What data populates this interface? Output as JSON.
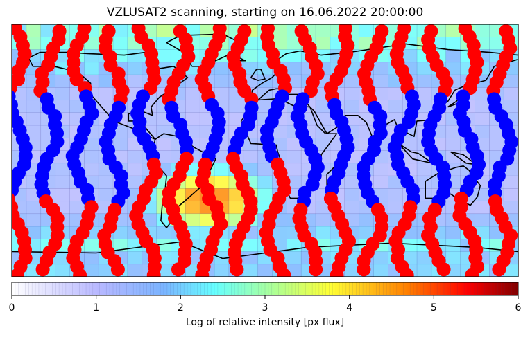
{
  "chart_data": {
    "type": "heatmap",
    "title": "VZLUSAT2 scanning, starting on 16.06.2022 20:00:00",
    "map": {
      "projection": "equirectangular",
      "coastlines": true,
      "grid_cols": 35,
      "grid_rows": 20
    },
    "intensity_regions": [
      {
        "region": "south-atlantic-anomaly",
        "peak": 4.8
      },
      {
        "region": "polar-belts",
        "peak": 2.8
      },
      {
        "region": "equatorial",
        "peak": 1.0
      }
    ],
    "markers": [
      {
        "name": "low-flux-marker",
        "color": "#0000ff"
      },
      {
        "name": "high-flux-marker",
        "color": "#ff0000"
      }
    ],
    "colorbar": {
      "label": "Log of relative intensity [px flux]",
      "ticks": [
        "0",
        "1",
        "2",
        "3",
        "4",
        "5",
        "6"
      ],
      "range": [
        0,
        6
      ],
      "colormap": "jet"
    }
  }
}
